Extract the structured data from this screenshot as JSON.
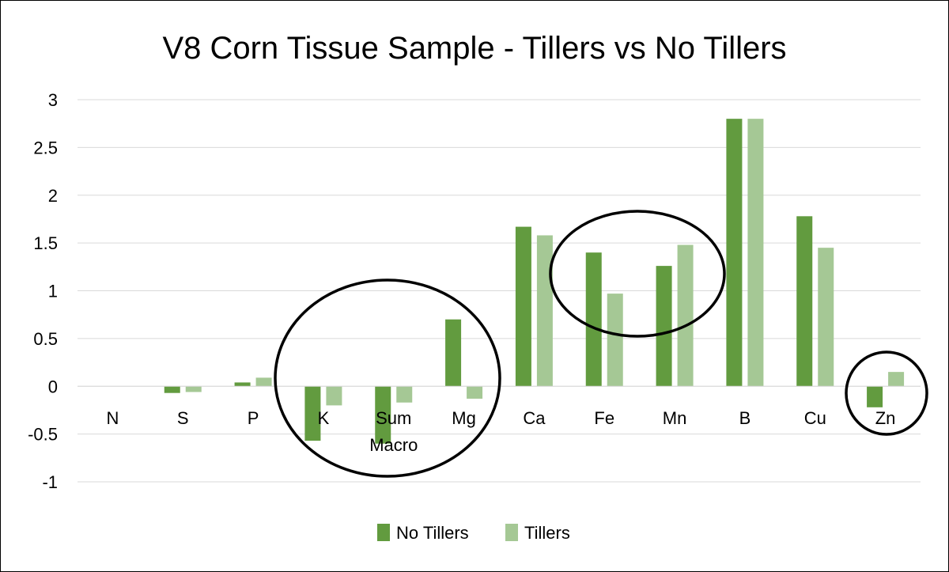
{
  "chart_data": {
    "type": "bar",
    "title": "V8 Corn Tissue Sample - Tillers vs No Tillers",
    "xlabel": "",
    "ylabel": "",
    "ylim": [
      -1,
      3
    ],
    "ytick_step": 0.5,
    "yticks": [
      "-1",
      "-0.5",
      "0",
      "0.5",
      "1",
      "1.5",
      "2",
      "2.5",
      "3"
    ],
    "categories": [
      "N",
      "S",
      "P",
      "K",
      "Sum Macro",
      "Mg",
      "Ca",
      "Fe",
      "Mn",
      "B",
      "Cu",
      "Zn"
    ],
    "category_lines": [
      [
        "N"
      ],
      [
        "S"
      ],
      [
        "P"
      ],
      [
        "K"
      ],
      [
        "Sum",
        "Macro"
      ],
      [
        "Mg"
      ],
      [
        "Ca"
      ],
      [
        "Fe"
      ],
      [
        "Mn"
      ],
      [
        "B"
      ],
      [
        "Cu"
      ],
      [
        "Zn"
      ]
    ],
    "series": [
      {
        "name": "No Tillers",
        "color": "#629b3f",
        "values": [
          0,
          -0.07,
          0.04,
          -0.57,
          -0.6,
          0.7,
          1.67,
          1.4,
          1.26,
          2.8,
          1.78,
          -0.22
        ]
      },
      {
        "name": "Tillers",
        "color": "#a5c895",
        "values": [
          0,
          -0.06,
          0.09,
          -0.2,
          -0.17,
          -0.13,
          1.58,
          0.97,
          1.48,
          2.8,
          1.45,
          0.15
        ]
      }
    ],
    "grid": true,
    "legend": "bottom-center",
    "annotations": [
      {
        "type": "ellipse",
        "encloses": [
          "K",
          "Sum Macro",
          "Mg"
        ]
      },
      {
        "type": "ellipse",
        "encloses": [
          "Fe",
          "Mn"
        ]
      },
      {
        "type": "ellipse",
        "encloses": [
          "Zn"
        ]
      }
    ]
  }
}
